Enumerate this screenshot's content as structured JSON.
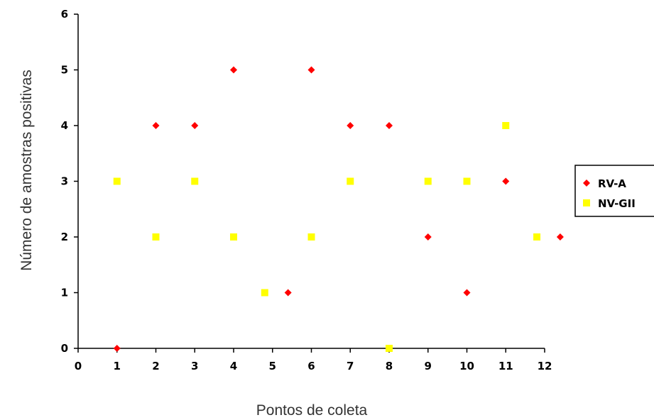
{
  "chart_data": {
    "type": "scatter",
    "title": "",
    "xlabel": "Pontos de coleta",
    "ylabel": "Número de amostras positivas",
    "xlim": [
      0,
      12
    ],
    "ylim": [
      0,
      6
    ],
    "xticks": [
      "0",
      "1",
      "2",
      "3",
      "4",
      "5",
      "6",
      "7",
      "8",
      "9",
      "10",
      "11",
      "12"
    ],
    "yticks": [
      "0",
      "1",
      "2",
      "3",
      "4",
      "5",
      "6"
    ],
    "grid": false,
    "legend_position": "right",
    "series": [
      {
        "name": "RV-A",
        "color": "#ff0000",
        "marker": "diamond",
        "points": [
          [
            1,
            0
          ],
          [
            2,
            4
          ],
          [
            3,
            4
          ],
          [
            4,
            5
          ],
          [
            5.4,
            1
          ],
          [
            6,
            5
          ],
          [
            7,
            4
          ],
          [
            8,
            4
          ],
          [
            9,
            2
          ],
          [
            10,
            1
          ],
          [
            11,
            3
          ],
          [
            12.4,
            2
          ]
        ]
      },
      {
        "name": "NV-GII",
        "color": "#ffff00",
        "marker": "square",
        "points": [
          [
            1,
            3
          ],
          [
            2,
            2
          ],
          [
            3,
            3
          ],
          [
            4,
            2
          ],
          [
            4.8,
            1
          ],
          [
            6,
            2
          ],
          [
            7,
            3
          ],
          [
            8,
            0
          ],
          [
            9,
            3
          ],
          [
            10,
            3
          ],
          [
            11,
            4
          ],
          [
            11.8,
            2
          ]
        ]
      }
    ]
  }
}
